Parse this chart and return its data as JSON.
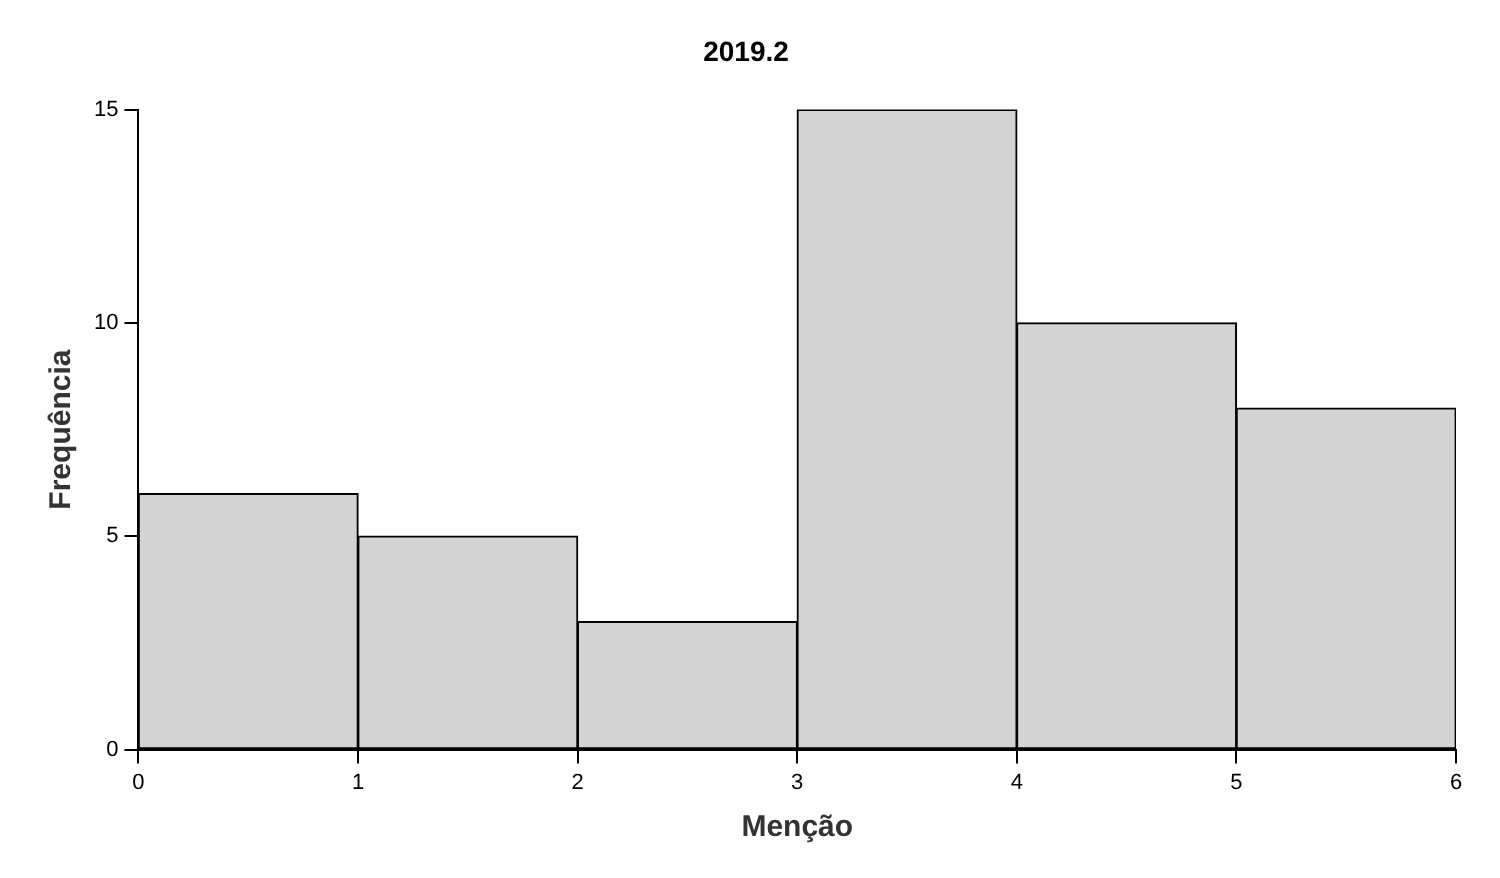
{
  "chart_data": {
    "type": "histogram",
    "title": "2019.2",
    "xlabel": "Menção",
    "ylabel": "Frequência",
    "bins": [
      0,
      1,
      2,
      3,
      4,
      5,
      6
    ],
    "values": [
      6,
      5,
      3,
      15,
      10,
      8
    ],
    "color": "#d3d3d3",
    "xlim": [
      0,
      6
    ],
    "xticks": [
      0,
      1,
      2,
      3,
      4,
      5,
      6
    ],
    "ylim": [
      0,
      15
    ],
    "yticks": [
      0,
      5,
      10,
      15
    ],
    "grid": false,
    "legend": false
  }
}
